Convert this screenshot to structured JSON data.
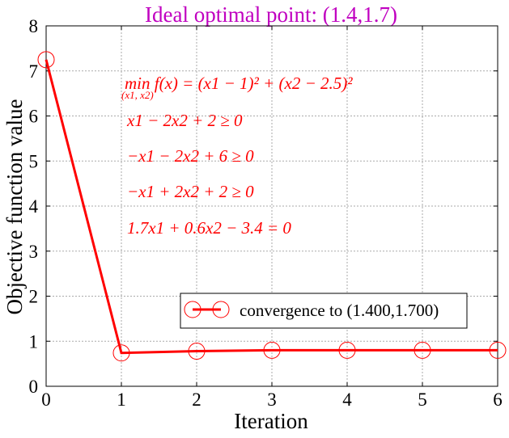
{
  "chart_data": {
    "type": "line",
    "title": "Ideal optimal point: (1.4,1.7)",
    "title_color": "#c000c0",
    "xlabel": "Iteration",
    "ylabel": "Objective function value",
    "xlim": [
      0,
      6
    ],
    "ylim": [
      0,
      8
    ],
    "xticks": [
      "0",
      "1",
      "2",
      "3",
      "4",
      "5",
      "6"
    ],
    "yticks": [
      "0",
      "1",
      "2",
      "3",
      "4",
      "5",
      "6",
      "7",
      "8"
    ],
    "grid": true,
    "legend_position": "lower-right",
    "series": [
      {
        "name": "convergence to (1.400,1.700)",
        "color": "#ff0000",
        "marker": "open-circle",
        "x": [
          0,
          1,
          2,
          3,
          4,
          5,
          6
        ],
        "y": [
          7.25,
          0.74,
          0.78,
          0.8,
          0.8,
          0.8,
          0.8
        ]
      }
    ],
    "annotations": [
      "min f(x) = (x1 − 1)² + (x2 − 2.5)²",
      "(x1, x2)",
      "x1 − 2x2 + 2 ≥ 0",
      "−x1 − 2x2 + 6 ≥ 0",
      "−x1 + 2x2 + 2 ≥ 0",
      "1.7x1 + 0.6x2 − 3.4 = 0"
    ],
    "annotation_color": "#ff0000"
  }
}
